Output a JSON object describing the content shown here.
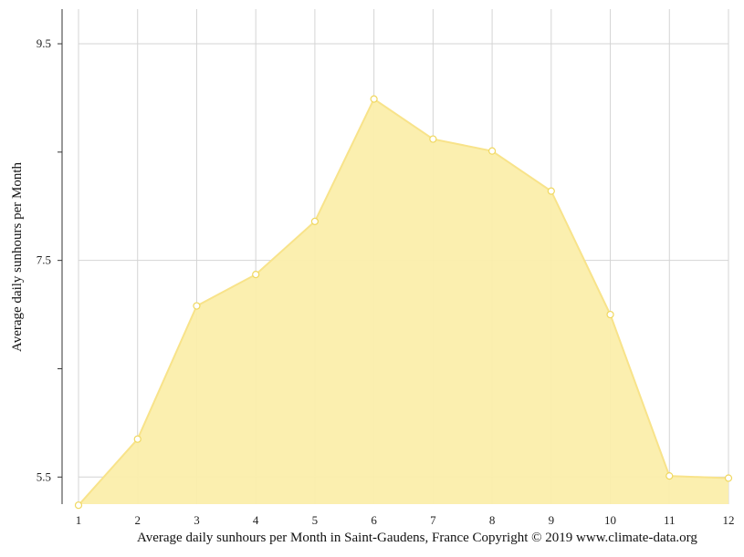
{
  "chart_data": {
    "type": "area",
    "title": "",
    "ylabel": "Average daily sunhours per Month",
    "caption": "Average daily sunhours per Month in Saint-Gaudens, France Copyright © 2019 www.climate-data.org",
    "x": [
      1,
      2,
      3,
      4,
      5,
      6,
      7,
      8,
      9,
      10,
      11,
      12
    ],
    "xticks": [
      "1",
      "2",
      "3",
      "4",
      "5",
      "6",
      "7",
      "8",
      "9",
      "10",
      "11",
      "12"
    ],
    "yticks": [
      "5.5",
      "7.5",
      "9.5"
    ],
    "ylim": [
      5.25,
      9.82
    ],
    "grid": true,
    "series": [
      {
        "values": [
          5.24,
          5.85,
          7.08,
          7.37,
          7.86,
          8.99,
          8.62,
          8.51,
          8.14,
          7.0,
          5.51,
          5.49
        ],
        "fill": "#fbeeab",
        "stroke": "#f8e38a",
        "marker_fill": "#ffffff",
        "marker_stroke": "#f0d860"
      }
    ]
  }
}
